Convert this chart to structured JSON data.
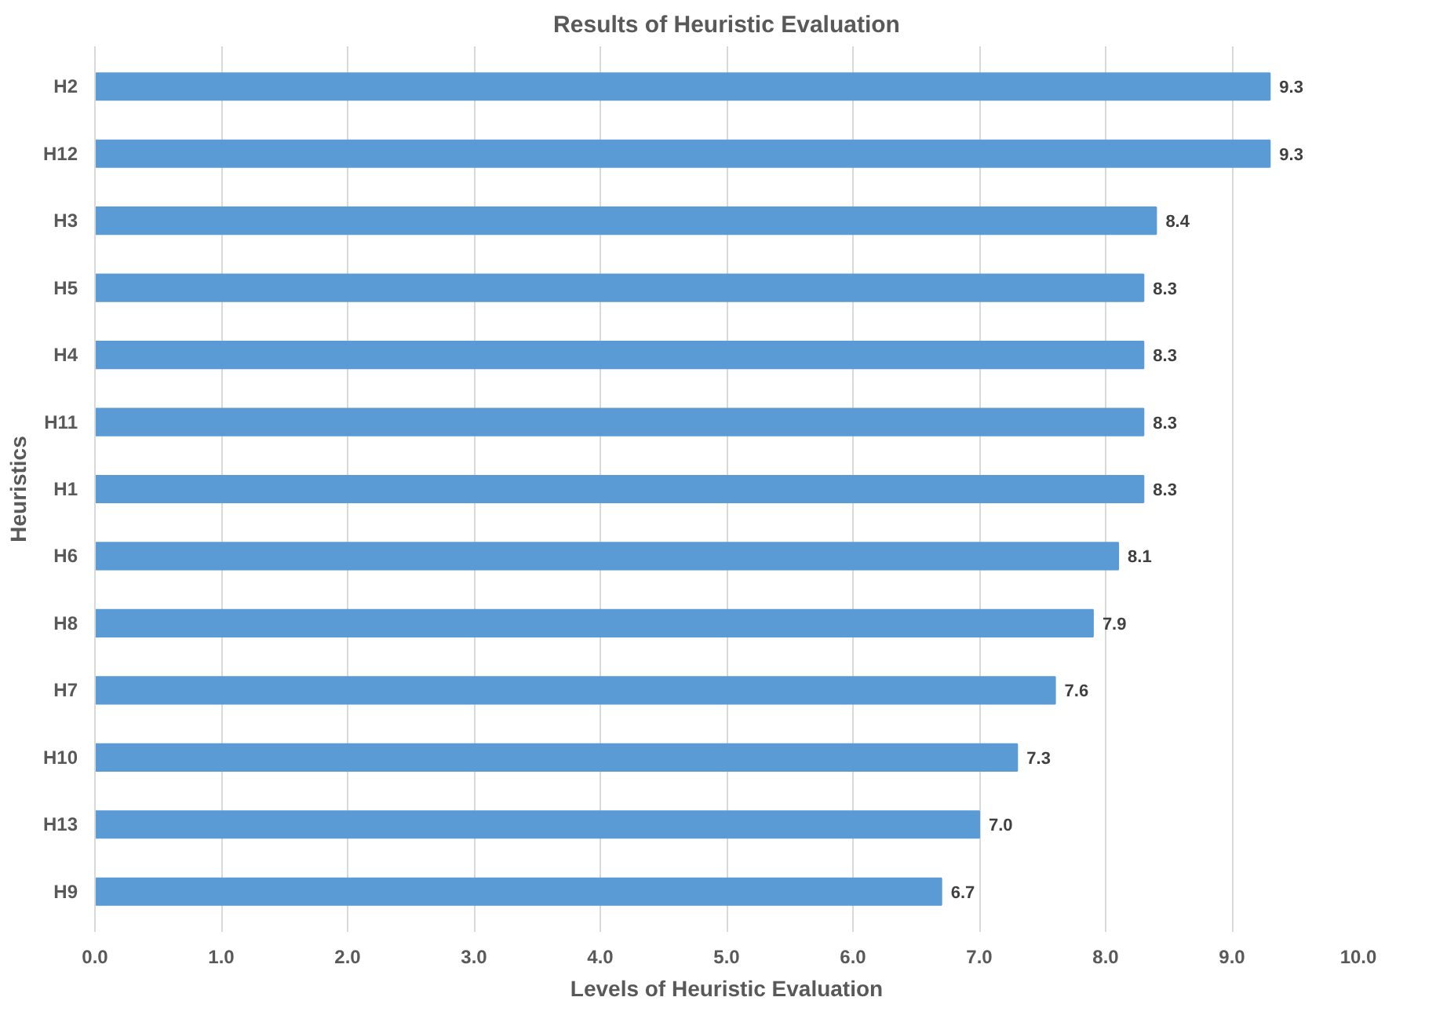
{
  "chart_data": {
    "type": "bar",
    "orientation": "horizontal",
    "title": "Results of Heuristic Evaluation",
    "xlabel": "Levels of Heuristic Evaluation",
    "ylabel": "Heuristics",
    "categories": [
      "H2",
      "H12",
      "H3",
      "H5",
      "H4",
      "H11",
      "H1",
      "H6",
      "H8",
      "H7",
      "H10",
      "H13",
      "H9"
    ],
    "values": [
      9.3,
      9.3,
      8.4,
      8.3,
      8.3,
      8.3,
      8.3,
      8.1,
      7.9,
      7.6,
      7.3,
      7.0,
      6.7
    ],
    "value_labels": [
      "9.3",
      "9.3",
      "8.4",
      "8.3",
      "8.3",
      "8.3",
      "8.3",
      "8.1",
      "7.9",
      "7.6",
      "7.3",
      "7.0",
      "6.7"
    ],
    "color": "#5b9bd5",
    "xlim": [
      0,
      10
    ],
    "xticks": [
      {
        "value": 0,
        "label": "0.0"
      },
      {
        "value": 1,
        "label": "1.0"
      },
      {
        "value": 2,
        "label": "2.0"
      },
      {
        "value": 3,
        "label": "3.0"
      },
      {
        "value": 4,
        "label": "4.0"
      },
      {
        "value": 5,
        "label": "5.0"
      },
      {
        "value": 6,
        "label": "6.0"
      },
      {
        "value": 7,
        "label": "7.0"
      },
      {
        "value": 8,
        "label": "8.0"
      },
      {
        "value": 9,
        "label": "9.0"
      },
      {
        "value": 10,
        "label": "10.0"
      }
    ],
    "grid": "x"
  }
}
